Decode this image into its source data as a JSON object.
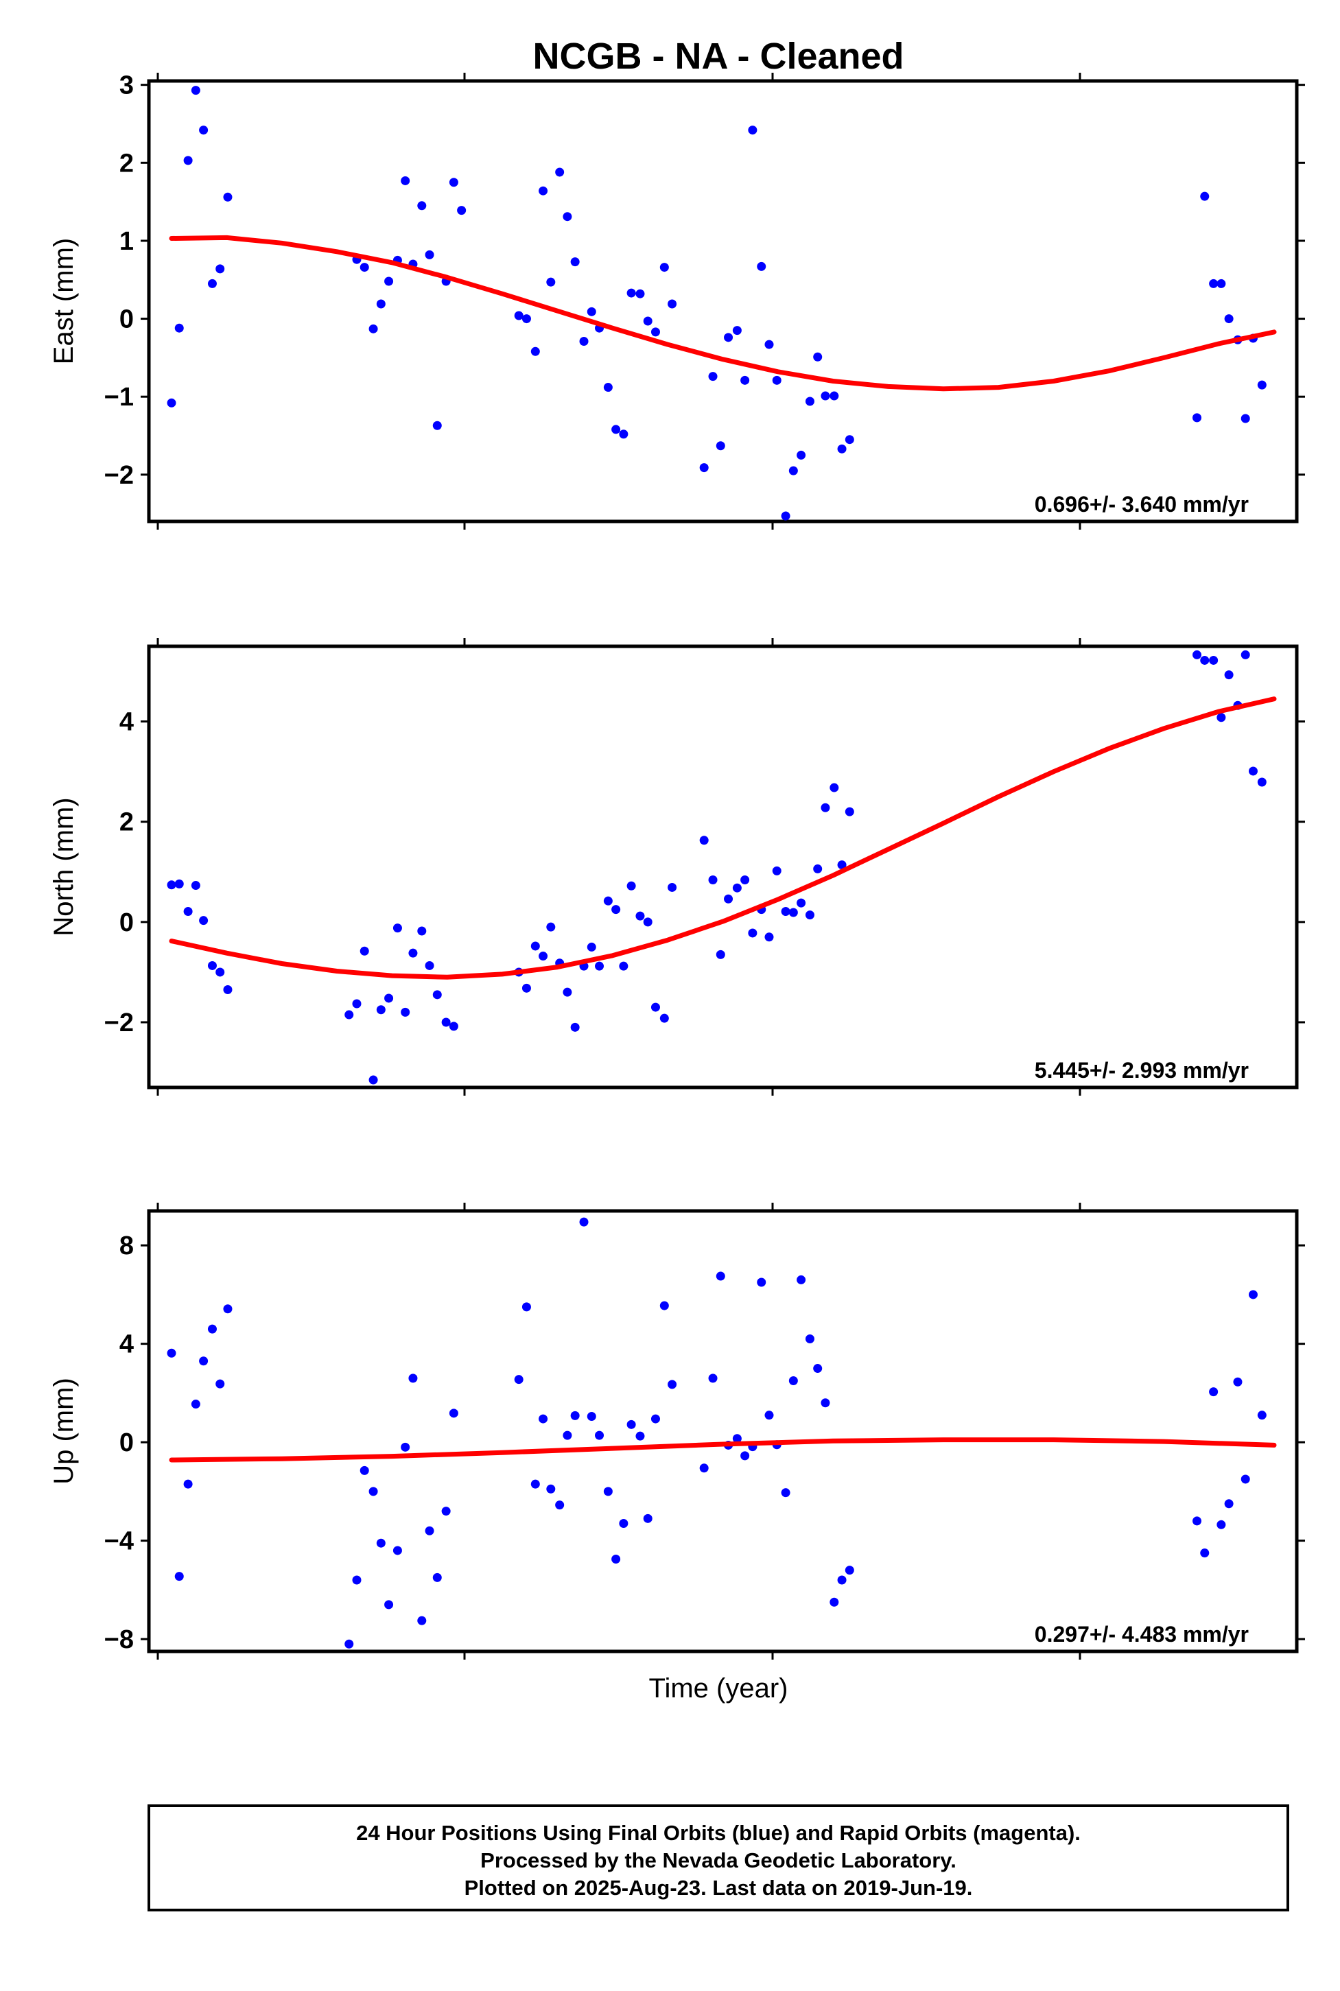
{
  "title": "NCGB  - NA - Cleaned",
  "xlabel": "Time (year)",
  "colors": {
    "points": "#0000ff",
    "fit": "#ff0000",
    "frame": "#000000"
  },
  "footer": {
    "line1": "24 Hour Positions Using Final Orbits (blue) and Rapid Orbits (magenta).",
    "line2": "Processed by the Nevada Geodetic Laboratory.",
    "line3": "Plotted on 2025-Aug-23. Last data on 2019-Jun-19."
  },
  "chart_data": [
    {
      "type": "scatter",
      "ylabel": "East (mm)",
      "ylim": [
        -2.6,
        3.05
      ],
      "yticks": [
        -2,
        -1,
        0,
        1,
        2,
        3
      ],
      "ytick_labels": [
        "−2",
        "−1",
        "0",
        "1",
        "2",
        "3"
      ],
      "xlim": [
        0,
        1
      ],
      "rate_label": "0.696+/- 3.640 mm/yr",
      "points": [
        [
          0.0,
          -1.08
        ],
        [
          0.007,
          -0.12
        ],
        [
          0.015,
          2.03
        ],
        [
          0.022,
          2.93
        ],
        [
          0.029,
          2.42
        ],
        [
          0.037,
          0.45
        ],
        [
          0.044,
          0.64
        ],
        [
          0.051,
          1.56
        ],
        [
          0.168,
          0.76
        ],
        [
          0.175,
          0.66
        ],
        [
          0.183,
          -0.13
        ],
        [
          0.19,
          0.19
        ],
        [
          0.197,
          0.48
        ],
        [
          0.205,
          0.75
        ],
        [
          0.212,
          1.77
        ],
        [
          0.219,
          0.7
        ],
        [
          0.227,
          1.45
        ],
        [
          0.234,
          0.82
        ],
        [
          0.241,
          -1.37
        ],
        [
          0.249,
          0.48
        ],
        [
          0.256,
          1.75
        ],
        [
          0.263,
          1.39
        ],
        [
          0.315,
          0.04
        ],
        [
          0.322,
          0.0
        ],
        [
          0.33,
          -0.42
        ],
        [
          0.337,
          1.64
        ],
        [
          0.344,
          0.47
        ],
        [
          0.352,
          1.88
        ],
        [
          0.359,
          1.31
        ],
        [
          0.366,
          0.73
        ],
        [
          0.374,
          -0.29
        ],
        [
          0.381,
          0.09
        ],
        [
          0.388,
          -0.12
        ],
        [
          0.396,
          -0.88
        ],
        [
          0.403,
          -1.42
        ],
        [
          0.41,
          -1.48
        ],
        [
          0.417,
          0.33
        ],
        [
          0.425,
          0.32
        ],
        [
          0.432,
          -0.03
        ],
        [
          0.439,
          -0.17
        ],
        [
          0.447,
          0.66
        ],
        [
          0.454,
          0.19
        ],
        [
          0.483,
          -1.91
        ],
        [
          0.491,
          -0.74
        ],
        [
          0.498,
          -1.63
        ],
        [
          0.505,
          -0.24
        ],
        [
          0.513,
          -0.15
        ],
        [
          0.52,
          -0.79
        ],
        [
          0.527,
          2.42
        ],
        [
          0.535,
          0.67
        ],
        [
          0.542,
          -0.33
        ],
        [
          0.549,
          -0.79
        ],
        [
          0.557,
          -2.53
        ],
        [
          0.564,
          -1.95
        ],
        [
          0.571,
          -1.75
        ],
        [
          0.579,
          -1.06
        ],
        [
          0.586,
          -0.49
        ],
        [
          0.593,
          -0.99
        ],
        [
          0.601,
          -0.99
        ],
        [
          0.608,
          -1.67
        ],
        [
          0.615,
          -1.55
        ],
        [
          0.93,
          -1.27
        ],
        [
          0.937,
          1.57
        ],
        [
          0.945,
          0.45
        ],
        [
          0.952,
          0.45
        ],
        [
          0.959,
          0.0
        ],
        [
          0.967,
          -0.27
        ],
        [
          0.974,
          -1.28
        ],
        [
          0.981,
          -0.25
        ],
        [
          0.989,
          -0.85
        ]
      ],
      "fit": [
        [
          0.0,
          1.03
        ],
        [
          0.05,
          1.04
        ],
        [
          0.1,
          0.97
        ],
        [
          0.15,
          0.86
        ],
        [
          0.2,
          0.72
        ],
        [
          0.25,
          0.53
        ],
        [
          0.3,
          0.32
        ],
        [
          0.35,
          0.1
        ],
        [
          0.4,
          -0.12
        ],
        [
          0.45,
          -0.33
        ],
        [
          0.5,
          -0.52
        ],
        [
          0.55,
          -0.68
        ],
        [
          0.6,
          -0.8
        ],
        [
          0.65,
          -0.87
        ],
        [
          0.7,
          -0.9
        ],
        [
          0.75,
          -0.88
        ],
        [
          0.8,
          -0.8
        ],
        [
          0.85,
          -0.67
        ],
        [
          0.9,
          -0.5
        ],
        [
          0.95,
          -0.32
        ],
        [
          1.0,
          -0.17
        ]
      ]
    },
    {
      "type": "scatter",
      "ylabel": "North (mm)",
      "ylim": [
        -3.3,
        5.5
      ],
      "yticks": [
        -2,
        0,
        2,
        4
      ],
      "ytick_labels": [
        "−2",
        "0",
        "2",
        "4"
      ],
      "xlim": [
        0,
        1
      ],
      "rate_label": "5.445+/- 2.993 mm/yr",
      "points": [
        [
          0.0,
          0.74
        ],
        [
          0.007,
          0.76
        ],
        [
          0.015,
          0.21
        ],
        [
          0.022,
          0.73
        ],
        [
          0.029,
          0.03
        ],
        [
          0.037,
          -0.87
        ],
        [
          0.044,
          -1.0
        ],
        [
          0.051,
          -1.35
        ],
        [
          0.161,
          -1.85
        ],
        [
          0.168,
          -1.63
        ],
        [
          0.175,
          -0.58
        ],
        [
          0.183,
          -3.15
        ],
        [
          0.19,
          -1.75
        ],
        [
          0.197,
          -1.52
        ],
        [
          0.205,
          -0.12
        ],
        [
          0.212,
          -1.8
        ],
        [
          0.219,
          -0.62
        ],
        [
          0.227,
          -0.18
        ],
        [
          0.234,
          -0.87
        ],
        [
          0.241,
          -1.45
        ],
        [
          0.249,
          -2.0
        ],
        [
          0.256,
          -2.08
        ],
        [
          0.315,
          -1.0
        ],
        [
          0.322,
          -1.32
        ],
        [
          0.33,
          -0.48
        ],
        [
          0.337,
          -0.68
        ],
        [
          0.344,
          -0.1
        ],
        [
          0.352,
          -0.82
        ],
        [
          0.359,
          -1.4
        ],
        [
          0.366,
          -2.1
        ],
        [
          0.374,
          -0.88
        ],
        [
          0.381,
          -0.5
        ],
        [
          0.388,
          -0.88
        ],
        [
          0.396,
          0.42
        ],
        [
          0.403,
          0.25
        ],
        [
          0.41,
          -0.88
        ],
        [
          0.417,
          0.72
        ],
        [
          0.425,
          0.12
        ],
        [
          0.432,
          0.0
        ],
        [
          0.439,
          -1.7
        ],
        [
          0.447,
          -1.92
        ],
        [
          0.454,
          0.69
        ],
        [
          0.483,
          1.63
        ],
        [
          0.491,
          0.84
        ],
        [
          0.498,
          -0.65
        ],
        [
          0.505,
          0.46
        ],
        [
          0.513,
          0.68
        ],
        [
          0.52,
          0.84
        ],
        [
          0.527,
          -0.22
        ],
        [
          0.535,
          0.25
        ],
        [
          0.542,
          -0.3
        ],
        [
          0.549,
          1.02
        ],
        [
          0.557,
          0.21
        ],
        [
          0.564,
          0.19
        ],
        [
          0.571,
          0.38
        ],
        [
          0.579,
          0.14
        ],
        [
          0.586,
          1.06
        ],
        [
          0.593,
          2.28
        ],
        [
          0.601,
          2.68
        ],
        [
          0.608,
          1.14
        ],
        [
          0.615,
          2.2
        ],
        [
          0.93,
          5.33
        ],
        [
          0.937,
          5.22
        ],
        [
          0.945,
          5.22
        ],
        [
          0.952,
          4.08
        ],
        [
          0.959,
          4.93
        ],
        [
          0.967,
          4.32
        ],
        [
          0.974,
          5.33
        ],
        [
          0.981,
          3.01
        ],
        [
          0.989,
          2.79
        ]
      ],
      "fit": [
        [
          0.0,
          -0.38
        ],
        [
          0.05,
          -0.62
        ],
        [
          0.1,
          -0.83
        ],
        [
          0.15,
          -0.98
        ],
        [
          0.2,
          -1.07
        ],
        [
          0.25,
          -1.1
        ],
        [
          0.3,
          -1.04
        ],
        [
          0.35,
          -0.9
        ],
        [
          0.4,
          -0.67
        ],
        [
          0.45,
          -0.36
        ],
        [
          0.5,
          0.01
        ],
        [
          0.55,
          0.45
        ],
        [
          0.6,
          0.93
        ],
        [
          0.65,
          1.45
        ],
        [
          0.7,
          1.97
        ],
        [
          0.75,
          2.5
        ],
        [
          0.8,
          3.0
        ],
        [
          0.85,
          3.46
        ],
        [
          0.9,
          3.86
        ],
        [
          0.95,
          4.2
        ],
        [
          1.0,
          4.45
        ]
      ]
    },
    {
      "type": "scatter",
      "ylabel": "Up (mm)",
      "ylim": [
        -8.5,
        9.4
      ],
      "yticks": [
        -8,
        -4,
        0,
        4,
        8
      ],
      "ytick_labels": [
        "−8",
        "−4",
        "0",
        "4",
        "8"
      ],
      "xlim": [
        0,
        1
      ],
      "rate_label": "0.297+/- 4.483 mm/yr",
      "points": [
        [
          0.0,
          3.62
        ],
        [
          0.007,
          -5.45
        ],
        [
          0.015,
          -1.7
        ],
        [
          0.022,
          1.55
        ],
        [
          0.029,
          3.3
        ],
        [
          0.037,
          4.6
        ],
        [
          0.044,
          2.37
        ],
        [
          0.051,
          5.42
        ],
        [
          0.161,
          -8.2
        ],
        [
          0.168,
          -5.6
        ],
        [
          0.175,
          -1.15
        ],
        [
          0.183,
          -2.0
        ],
        [
          0.19,
          -4.1
        ],
        [
          0.197,
          -6.6
        ],
        [
          0.205,
          -4.4
        ],
        [
          0.212,
          -0.2
        ],
        [
          0.219,
          2.6
        ],
        [
          0.227,
          -7.25
        ],
        [
          0.234,
          -3.6
        ],
        [
          0.241,
          -5.5
        ],
        [
          0.249,
          -2.8
        ],
        [
          0.256,
          1.18
        ],
        [
          0.315,
          2.55
        ],
        [
          0.322,
          5.5
        ],
        [
          0.33,
          -1.7
        ],
        [
          0.337,
          0.95
        ],
        [
          0.344,
          -1.9
        ],
        [
          0.352,
          -2.55
        ],
        [
          0.359,
          0.28
        ],
        [
          0.366,
          1.08
        ],
        [
          0.374,
          8.95
        ],
        [
          0.381,
          1.05
        ],
        [
          0.388,
          0.28
        ],
        [
          0.396,
          -2.0
        ],
        [
          0.403,
          -4.75
        ],
        [
          0.41,
          -3.3
        ],
        [
          0.417,
          0.72
        ],
        [
          0.425,
          0.25
        ],
        [
          0.432,
          -3.1
        ],
        [
          0.439,
          0.95
        ],
        [
          0.447,
          5.55
        ],
        [
          0.454,
          2.35
        ],
        [
          0.483,
          -1.05
        ],
        [
          0.491,
          2.6
        ],
        [
          0.498,
          6.75
        ],
        [
          0.505,
          -0.12
        ],
        [
          0.513,
          0.15
        ],
        [
          0.52,
          -0.55
        ],
        [
          0.527,
          -0.18
        ],
        [
          0.535,
          6.5
        ],
        [
          0.542,
          1.1
        ],
        [
          0.549,
          -0.1
        ],
        [
          0.557,
          -2.05
        ],
        [
          0.564,
          2.5
        ],
        [
          0.571,
          6.6
        ],
        [
          0.579,
          4.2
        ],
        [
          0.586,
          3.0
        ],
        [
          0.593,
          1.6
        ],
        [
          0.601,
          -6.5
        ],
        [
          0.608,
          -5.6
        ],
        [
          0.615,
          -5.2
        ],
        [
          0.93,
          -3.2
        ],
        [
          0.937,
          -4.5
        ],
        [
          0.945,
          2.05
        ],
        [
          0.952,
          -3.35
        ],
        [
          0.959,
          -2.5
        ],
        [
          0.967,
          2.45
        ],
        [
          0.974,
          -1.5
        ],
        [
          0.981,
          6.0
        ],
        [
          0.989,
          1.1
        ]
      ],
      "fit": [
        [
          0.0,
          -0.72
        ],
        [
          0.1,
          -0.67
        ],
        [
          0.2,
          -0.57
        ],
        [
          0.3,
          -0.42
        ],
        [
          0.4,
          -0.25
        ],
        [
          0.5,
          -0.08
        ],
        [
          0.6,
          0.05
        ],
        [
          0.7,
          0.1
        ],
        [
          0.8,
          0.1
        ],
        [
          0.9,
          0.03
        ],
        [
          1.0,
          -0.12
        ]
      ]
    }
  ]
}
